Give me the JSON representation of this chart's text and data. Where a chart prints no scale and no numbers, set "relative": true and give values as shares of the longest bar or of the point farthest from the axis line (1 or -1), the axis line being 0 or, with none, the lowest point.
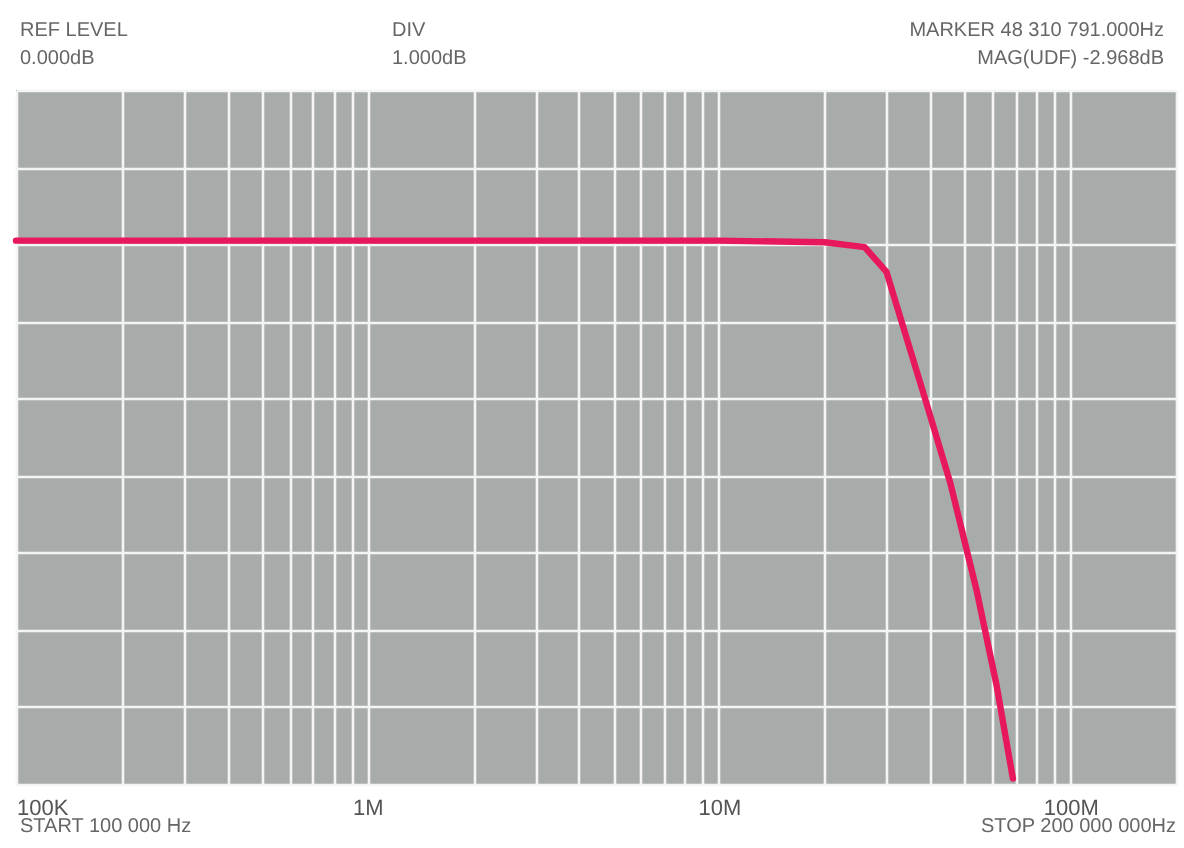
{
  "chart_data": {
    "type": "line",
    "log": "x",
    "annotations": [
      "REF LEVEL",
      "0.000dB",
      "DIV",
      "1.000dB",
      "MARKER 48 310 791.000Hz",
      "MAG(UDF)   -2.968dB",
      "START 100 000 Hz",
      "STOP 200 000 000Hz"
    ],
    "xlim": [
      100000,
      200000000
    ],
    "xticks": [
      {
        "value": 100000,
        "label": "100K"
      },
      {
        "value": 200000,
        "label": null
      },
      {
        "value": 300000,
        "label": null
      },
      {
        "value": 400000,
        "label": null
      },
      {
        "value": 500000,
        "label": null
      },
      {
        "value": 600000,
        "label": null
      },
      {
        "value": 700000,
        "label": null
      },
      {
        "value": 800000,
        "label": null
      },
      {
        "value": 900000,
        "label": null
      },
      {
        "value": 1000000,
        "label": "1M"
      },
      {
        "value": 2000000,
        "label": null
      },
      {
        "value": 3000000,
        "label": null
      },
      {
        "value": 4000000,
        "label": null
      },
      {
        "value": 5000000,
        "label": null
      },
      {
        "value": 6000000,
        "label": null
      },
      {
        "value": 7000000,
        "label": null
      },
      {
        "value": 8000000,
        "label": null
      },
      {
        "value": 9000000,
        "label": null
      },
      {
        "value": 10000000,
        "label": "10M"
      },
      {
        "value": 20000000,
        "label": null
      },
      {
        "value": 30000000,
        "label": null
      },
      {
        "value": 40000000,
        "label": null
      },
      {
        "value": 50000000,
        "label": null
      },
      {
        "value": 60000000,
        "label": null
      },
      {
        "value": 70000000,
        "label": null
      },
      {
        "value": 80000000,
        "label": null
      },
      {
        "value": 90000000,
        "label": null
      },
      {
        "value": 100000000,
        "label": "100M"
      },
      {
        "value": 200000000,
        "label": null
      }
    ],
    "relative": true,
    "grid": true,
    "tick_labels": "x",
    "series": [
      {
        "color": "#e8185c",
        "x": [
          100000,
          1000000,
          5000000,
          10000000,
          20000000,
          26000000,
          30000000,
          32300000,
          38400000,
          45600000,
          54200000,
          61700000,
          68700000
        ],
        "values": [
          1,
          1,
          1,
          1,
          0.997,
          0.988,
          0.942,
          0.873,
          0.712,
          0.549,
          0.349,
          0.174,
          0
        ]
      }
    ]
  }
}
